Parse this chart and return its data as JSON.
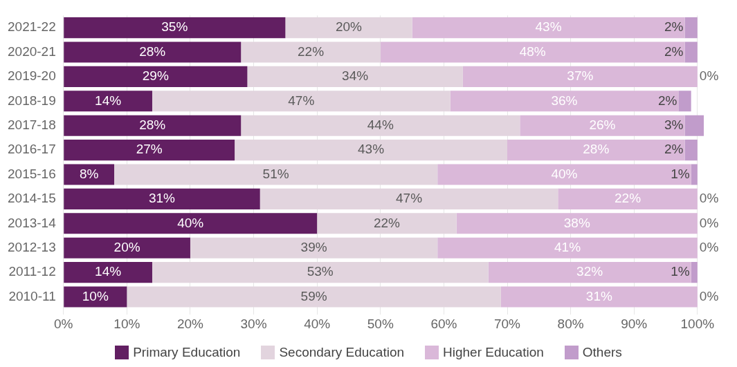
{
  "chart_data": {
    "type": "bar",
    "orientation": "horizontal",
    "stacked": true,
    "categories": [
      "2021-22",
      "2020-21",
      "2019-20",
      "2018-19",
      "2017-18",
      "2016-17",
      "2015-16",
      "2014-15",
      "2013-14",
      "2012-13",
      "2011-12",
      "2010-11"
    ],
    "series": [
      {
        "name": "Primary Education",
        "color": "#621f62",
        "values": [
          35,
          28,
          29,
          14,
          28,
          27,
          8,
          31,
          40,
          20,
          14,
          10
        ],
        "value_labels": [
          "35%",
          "28%",
          "29%",
          "14%",
          "28%",
          "27%",
          "8%",
          "31%",
          "40%",
          "20%",
          "14%",
          "10%"
        ]
      },
      {
        "name": "Secondary Education",
        "color": "#e2d4de",
        "values": [
          20,
          22,
          34,
          47,
          44,
          43,
          51,
          47,
          22,
          39,
          53,
          59
        ],
        "value_labels": [
          "20%",
          "22%",
          "34%",
          "47%",
          "44%",
          "43%",
          "51%",
          "47%",
          "22%",
          "39%",
          "53%",
          "59%"
        ]
      },
      {
        "name": "Higher Education",
        "color": "#dab8d9",
        "values": [
          43,
          48,
          37,
          36,
          26,
          28,
          40,
          22,
          38,
          41,
          32,
          31
        ],
        "value_labels": [
          "43%",
          "48%",
          "37%",
          "36%",
          "26%",
          "28%",
          "40%",
          "22%",
          "38%",
          "41%",
          "32%",
          "31%"
        ]
      },
      {
        "name": "Others",
        "color": "#c19ccb",
        "values": [
          2,
          2,
          0,
          2,
          3,
          2,
          1,
          0,
          0,
          0,
          1,
          0
        ],
        "value_labels": [
          "2%",
          "2%",
          "0%",
          "2%",
          "3%",
          "2%",
          "1%",
          "0%",
          "0%",
          "0%",
          "1%",
          "0%"
        ]
      }
    ],
    "xlim": [
      0,
      101
    ],
    "xticks": [
      {
        "value": 0,
        "label": "0%"
      },
      {
        "value": 10,
        "label": "10%"
      },
      {
        "value": 20,
        "label": "20%"
      },
      {
        "value": 30,
        "label": "30%"
      },
      {
        "value": 40,
        "label": "40%"
      },
      {
        "value": 50,
        "label": "50%"
      },
      {
        "value": 60,
        "label": "60%"
      },
      {
        "value": 70,
        "label": "70%"
      },
      {
        "value": 80,
        "label": "80%"
      },
      {
        "value": 90,
        "label": "90%"
      },
      {
        "value": 100,
        "label": "100%"
      }
    ],
    "grid": "x",
    "legend": "bottom"
  }
}
